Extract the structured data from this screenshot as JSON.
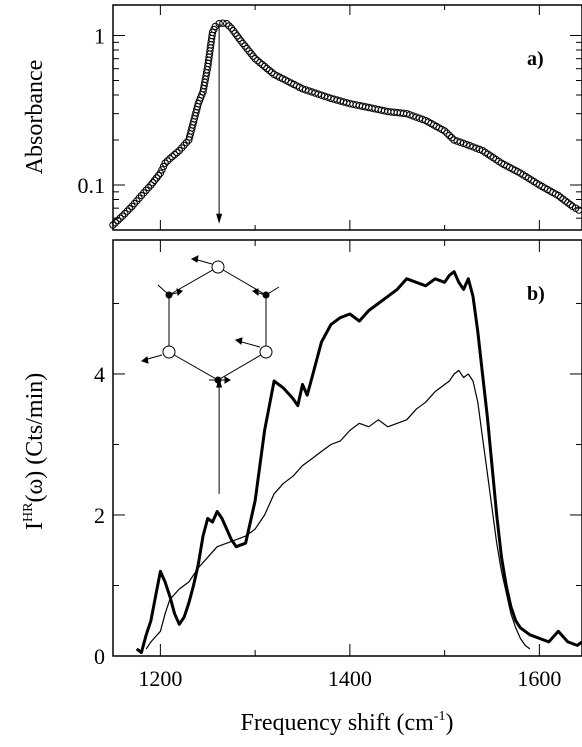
{
  "chart_data": [
    {
      "panel": "a",
      "panel_label": "a)",
      "type": "scatter",
      "ylabel": "Absorbance",
      "yscale": "log",
      "ylim": [
        0.05,
        1.6
      ],
      "xlim": [
        1150,
        1645
      ],
      "yticks": [
        0.1,
        1
      ],
      "ytick_labels": [
        "0.1",
        "1"
      ],
      "marker": "open-circle",
      "annotation_arrow": {
        "x": 1262,
        "from_y": 1.2,
        "to_y": 0.055
      },
      "series": [
        {
          "x": [
            1150,
            1160,
            1170,
            1180,
            1190,
            1200,
            1205,
            1210,
            1220,
            1230,
            1240,
            1245,
            1250,
            1255,
            1258,
            1262,
            1266,
            1270,
            1275,
            1285,
            1300,
            1320,
            1350,
            1380,
            1400,
            1420,
            1440,
            1460,
            1480,
            1500,
            1510,
            1520,
            1540,
            1560,
            1580,
            1600,
            1620,
            1635,
            1645
          ],
          "y": [
            0.054,
            0.062,
            0.072,
            0.085,
            0.1,
            0.12,
            0.14,
            0.15,
            0.17,
            0.2,
            0.35,
            0.42,
            0.62,
            1.05,
            1.15,
            1.2,
            1.21,
            1.2,
            1.12,
            0.92,
            0.7,
            0.55,
            0.44,
            0.38,
            0.35,
            0.33,
            0.31,
            0.3,
            0.27,
            0.23,
            0.2,
            0.19,
            0.17,
            0.14,
            0.12,
            0.1,
            0.085,
            0.072,
            0.066
          ]
        }
      ]
    },
    {
      "panel": "b",
      "panel_label": "b)",
      "type": "line",
      "xlabel_main": "Frequency shift (cm",
      "xlabel_sup": "-1",
      "xlabel_close": ")",
      "ylabel_main": "I",
      "ylabel_sup": "HR",
      "ylabel_rest": "(ω) (Cts/min)",
      "xlim": [
        1150,
        1645
      ],
      "ylim": [
        0,
        5.9
      ],
      "xticks": [
        1200,
        1400,
        1600
      ],
      "xtick_labels": [
        "1200",
        "1400",
        "1600"
      ],
      "yticks": [
        0,
        2,
        4
      ],
      "ytick_labels": [
        "0",
        "2",
        "4"
      ],
      "annotation_arrow": {
        "x": 1262,
        "from_y": 2.3,
        "to_y": 3.95
      },
      "series": [
        {
          "style": "thick",
          "x": [
            1175,
            1180,
            1185,
            1190,
            1195,
            1200,
            1205,
            1210,
            1215,
            1220,
            1225,
            1230,
            1235,
            1240,
            1245,
            1250,
            1255,
            1260,
            1265,
            1270,
            1275,
            1280,
            1290,
            1300,
            1310,
            1320,
            1330,
            1340,
            1345,
            1350,
            1355,
            1360,
            1365,
            1370,
            1380,
            1390,
            1400,
            1410,
            1420,
            1430,
            1440,
            1450,
            1460,
            1470,
            1480,
            1490,
            1500,
            1505,
            1510,
            1515,
            1520,
            1525,
            1530,
            1535,
            1540,
            1545,
            1550,
            1555,
            1560,
            1565,
            1570,
            1575,
            1580,
            1590,
            1600,
            1610,
            1620,
            1630,
            1640,
            1645
          ],
          "y": [
            0.1,
            0.05,
            0.3,
            0.5,
            0.85,
            1.2,
            1.05,
            0.85,
            0.6,
            0.45,
            0.55,
            0.75,
            1.0,
            1.3,
            1.7,
            1.95,
            1.9,
            2.05,
            1.95,
            1.8,
            1.65,
            1.55,
            1.6,
            2.2,
            3.2,
            3.9,
            3.8,
            3.65,
            3.55,
            3.85,
            3.7,
            3.95,
            4.2,
            4.45,
            4.7,
            4.8,
            4.85,
            4.75,
            4.9,
            5.0,
            5.1,
            5.2,
            5.35,
            5.3,
            5.25,
            5.35,
            5.3,
            5.4,
            5.45,
            5.3,
            5.2,
            5.35,
            5.1,
            4.6,
            4.0,
            3.4,
            2.7,
            2.0,
            1.4,
            1.0,
            0.7,
            0.5,
            0.4,
            0.3,
            0.25,
            0.2,
            0.35,
            0.2,
            0.15,
            0.2
          ]
        },
        {
          "style": "thin",
          "x": [
            1185,
            1190,
            1200,
            1205,
            1210,
            1220,
            1230,
            1240,
            1250,
            1260,
            1270,
            1280,
            1290,
            1300,
            1310,
            1320,
            1330,
            1340,
            1350,
            1360,
            1370,
            1380,
            1390,
            1400,
            1410,
            1420,
            1430,
            1440,
            1450,
            1460,
            1470,
            1480,
            1490,
            1500,
            1505,
            1510,
            1515,
            1520,
            1525,
            1530,
            1535,
            1540,
            1545,
            1550,
            1555,
            1560,
            1565,
            1570,
            1575,
            1580,
            1585,
            1590
          ],
          "y": [
            0.1,
            0.2,
            0.35,
            0.6,
            0.8,
            0.95,
            1.05,
            1.25,
            1.4,
            1.55,
            1.6,
            1.65,
            1.7,
            1.8,
            2.0,
            2.3,
            2.45,
            2.55,
            2.7,
            2.8,
            2.9,
            3.0,
            3.05,
            3.2,
            3.3,
            3.25,
            3.35,
            3.25,
            3.3,
            3.35,
            3.5,
            3.6,
            3.75,
            3.85,
            3.9,
            4.0,
            4.05,
            3.95,
            4.0,
            3.9,
            3.6,
            3.1,
            2.6,
            2.1,
            1.6,
            1.2,
            0.9,
            0.6,
            0.4,
            0.25,
            0.15,
            0.1
          ]
        }
      ]
    }
  ]
}
